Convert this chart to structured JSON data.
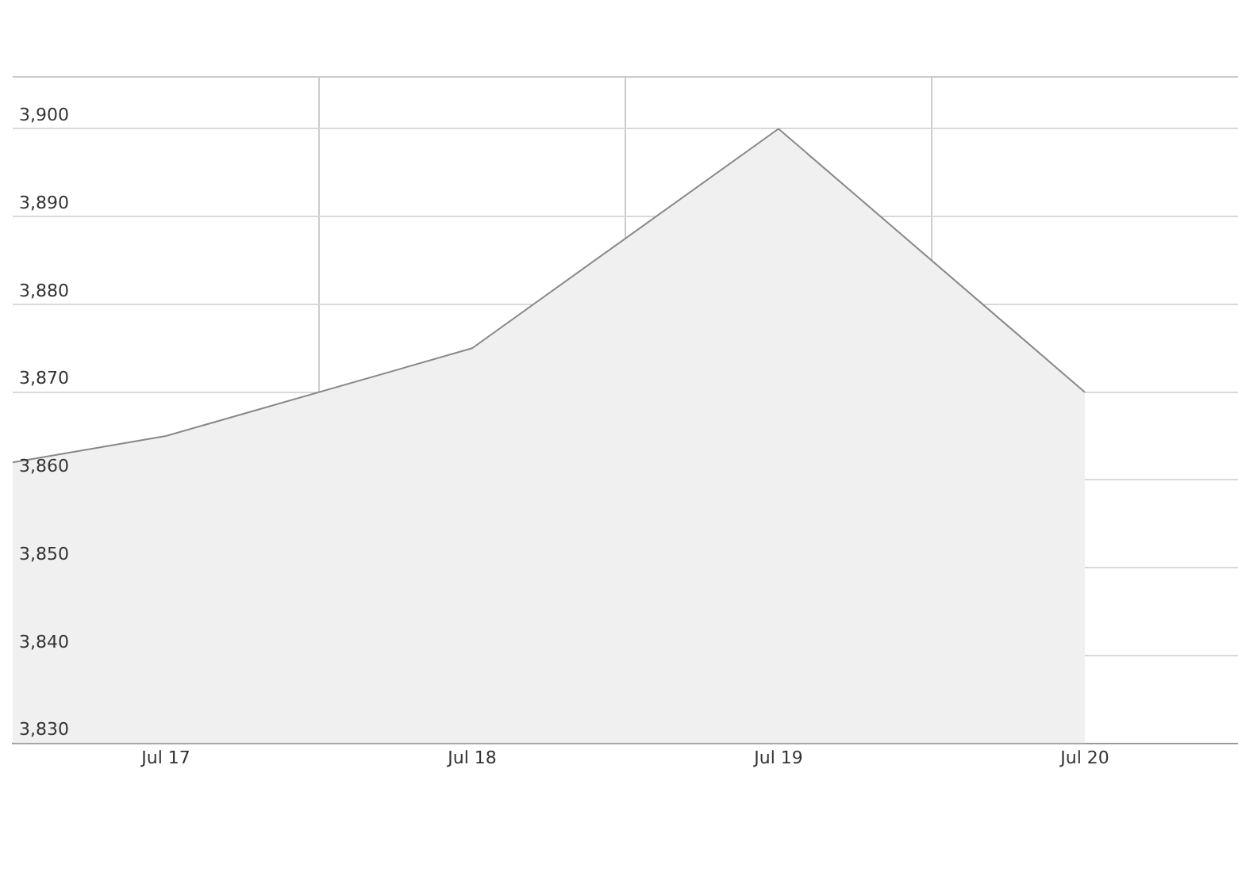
{
  "chart_data": {
    "type": "area",
    "x": [
      "--07-16T12:00",
      "--07-17",
      "--07-18",
      "--07-19",
      "--07-20"
    ],
    "series": [
      {
        "color": "#888888",
        "values": [
          3862,
          3865,
          3875,
          3900,
          3870
        ]
      }
    ],
    "xlim": [
      "--07-16T12:00",
      "--07-20T12:00"
    ],
    "xticks": [
      {
        "value": "--07-17",
        "label": "Jul 17"
      },
      {
        "value": "--07-17T12:00",
        "label": null
      },
      {
        "value": "--07-18",
        "label": "Jul 18"
      },
      {
        "value": "--07-18T12:00",
        "label": null
      },
      {
        "value": "--07-19",
        "label": "Jul 19"
      },
      {
        "value": "--07-19T12:00",
        "label": null
      },
      {
        "value": "--07-20",
        "label": "Jul 20"
      }
    ],
    "ylim": [
      3830,
      3906
    ],
    "yticks": [
      {
        "value": 3830,
        "label": "3,830"
      },
      {
        "value": 3840,
        "label": "3,840"
      },
      {
        "value": 3850,
        "label": "3,850"
      },
      {
        "value": 3860,
        "label": "3,860"
      },
      {
        "value": 3870,
        "label": "3,870"
      },
      {
        "value": 3880,
        "label": "3,880"
      },
      {
        "value": 3890,
        "label": "3,890"
      },
      {
        "value": 3900,
        "label": "3,900"
      }
    ],
    "grid": true,
    "legend": false,
    "marker": "none",
    "line_style": "solid"
  }
}
